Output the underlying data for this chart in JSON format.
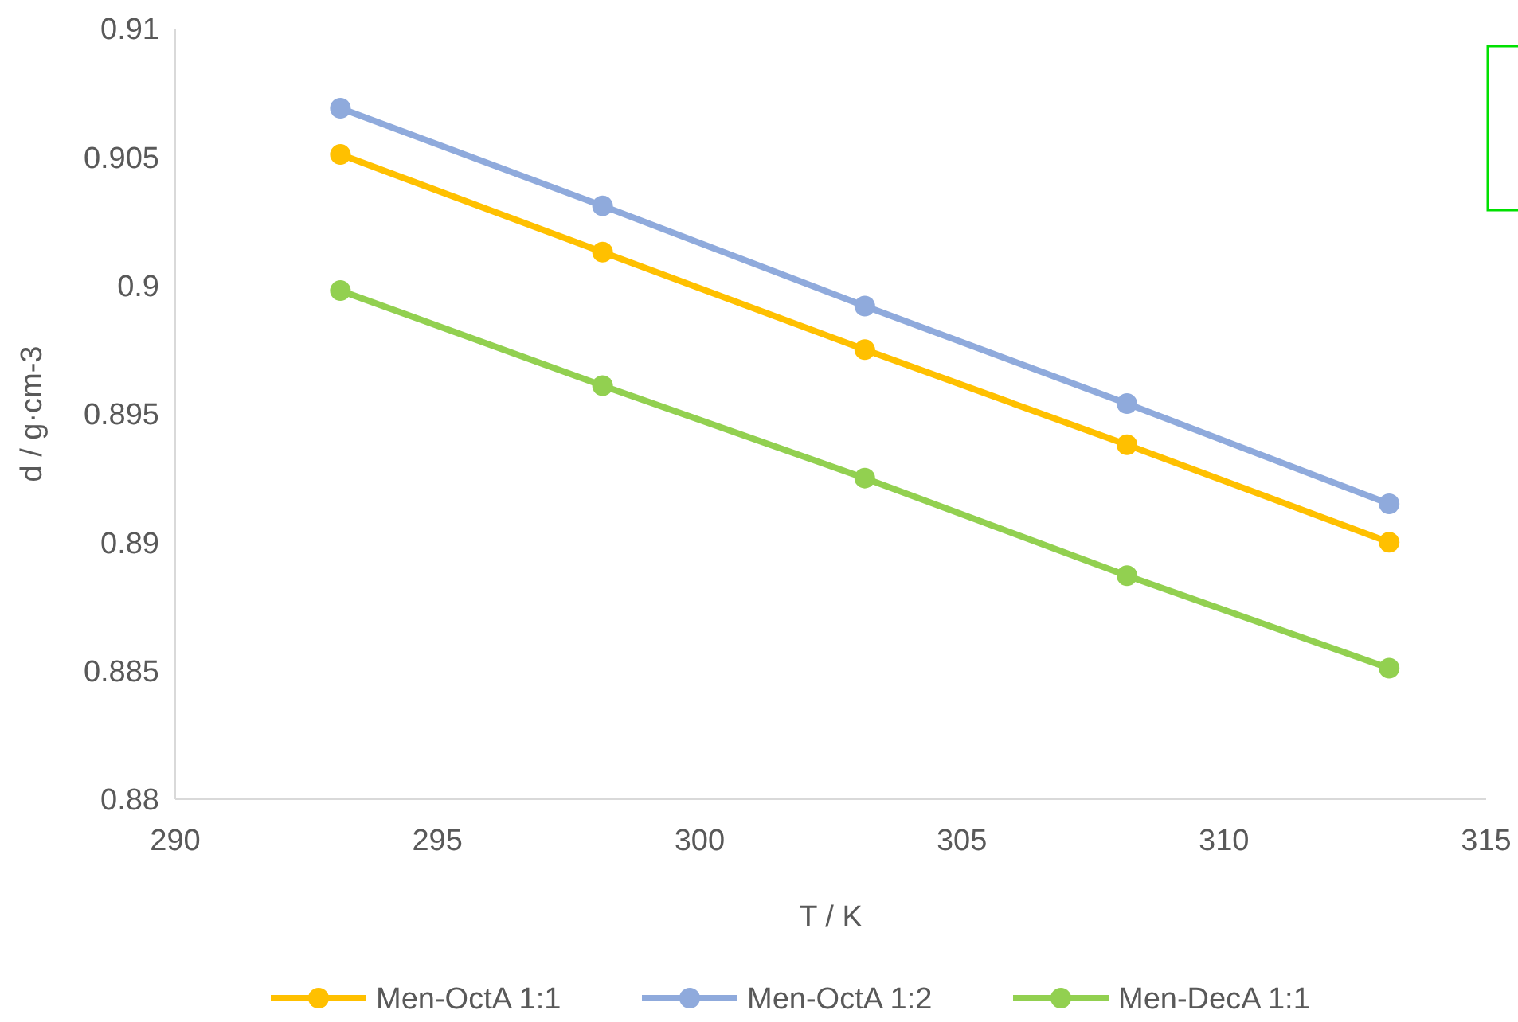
{
  "chart_data": {
    "type": "line",
    "xlabel": "T / K",
    "ylabel": "d / g·cm-3",
    "x": [
      293.15,
      298.15,
      303.15,
      308.15,
      313.15
    ],
    "xlim": [
      290,
      315
    ],
    "xticks": [
      290,
      295,
      300,
      305,
      310,
      315
    ],
    "ylim": [
      0.88,
      0.91
    ],
    "yticks": [
      0.88,
      0.885,
      0.89,
      0.895,
      0.9,
      0.905,
      0.91
    ],
    "grid": false,
    "legend": "bottom",
    "marker": "circle",
    "line_style": "solid",
    "series": [
      {
        "name": "Men-OctA 1:1",
        "color": "#ffc000",
        "values": [
          0.9051,
          0.9013,
          0.8975,
          0.8938,
          0.89
        ]
      },
      {
        "name": "Men-OctA 1:2",
        "color": "#8faadc",
        "values": [
          0.9069,
          0.9031,
          0.8992,
          0.8954,
          0.8915
        ]
      },
      {
        "name": "Men-DecA 1:1",
        "color": "#92d050",
        "values": [
          0.8998,
          0.8961,
          0.8925,
          0.8887,
          0.8851
        ]
      }
    ]
  }
}
